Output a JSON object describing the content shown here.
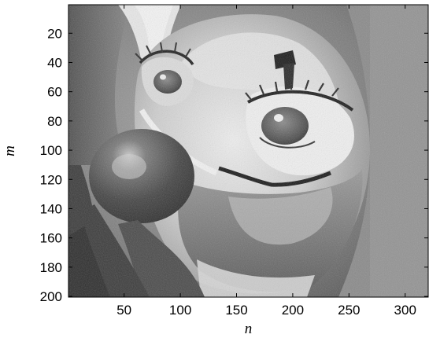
{
  "chart_data": {
    "type": "heatmap",
    "colormap": "gray",
    "xlabel": "n",
    "ylabel": "m",
    "xlim": [
      1,
      320
    ],
    "ylim": [
      1,
      200
    ],
    "y_direction": "reversed",
    "xticks": [
      50,
      100,
      150,
      200,
      250,
      300
    ],
    "yticks": [
      20,
      40,
      60,
      80,
      100,
      120,
      140,
      160,
      180,
      200
    ],
    "xtick_labels": [
      "50",
      "100",
      "150",
      "200",
      "250",
      "300"
    ],
    "ytick_labels": [
      "20",
      "40",
      "60",
      "80",
      "100",
      "120",
      "140",
      "160",
      "180",
      "200"
    ],
    "grid": false
  }
}
